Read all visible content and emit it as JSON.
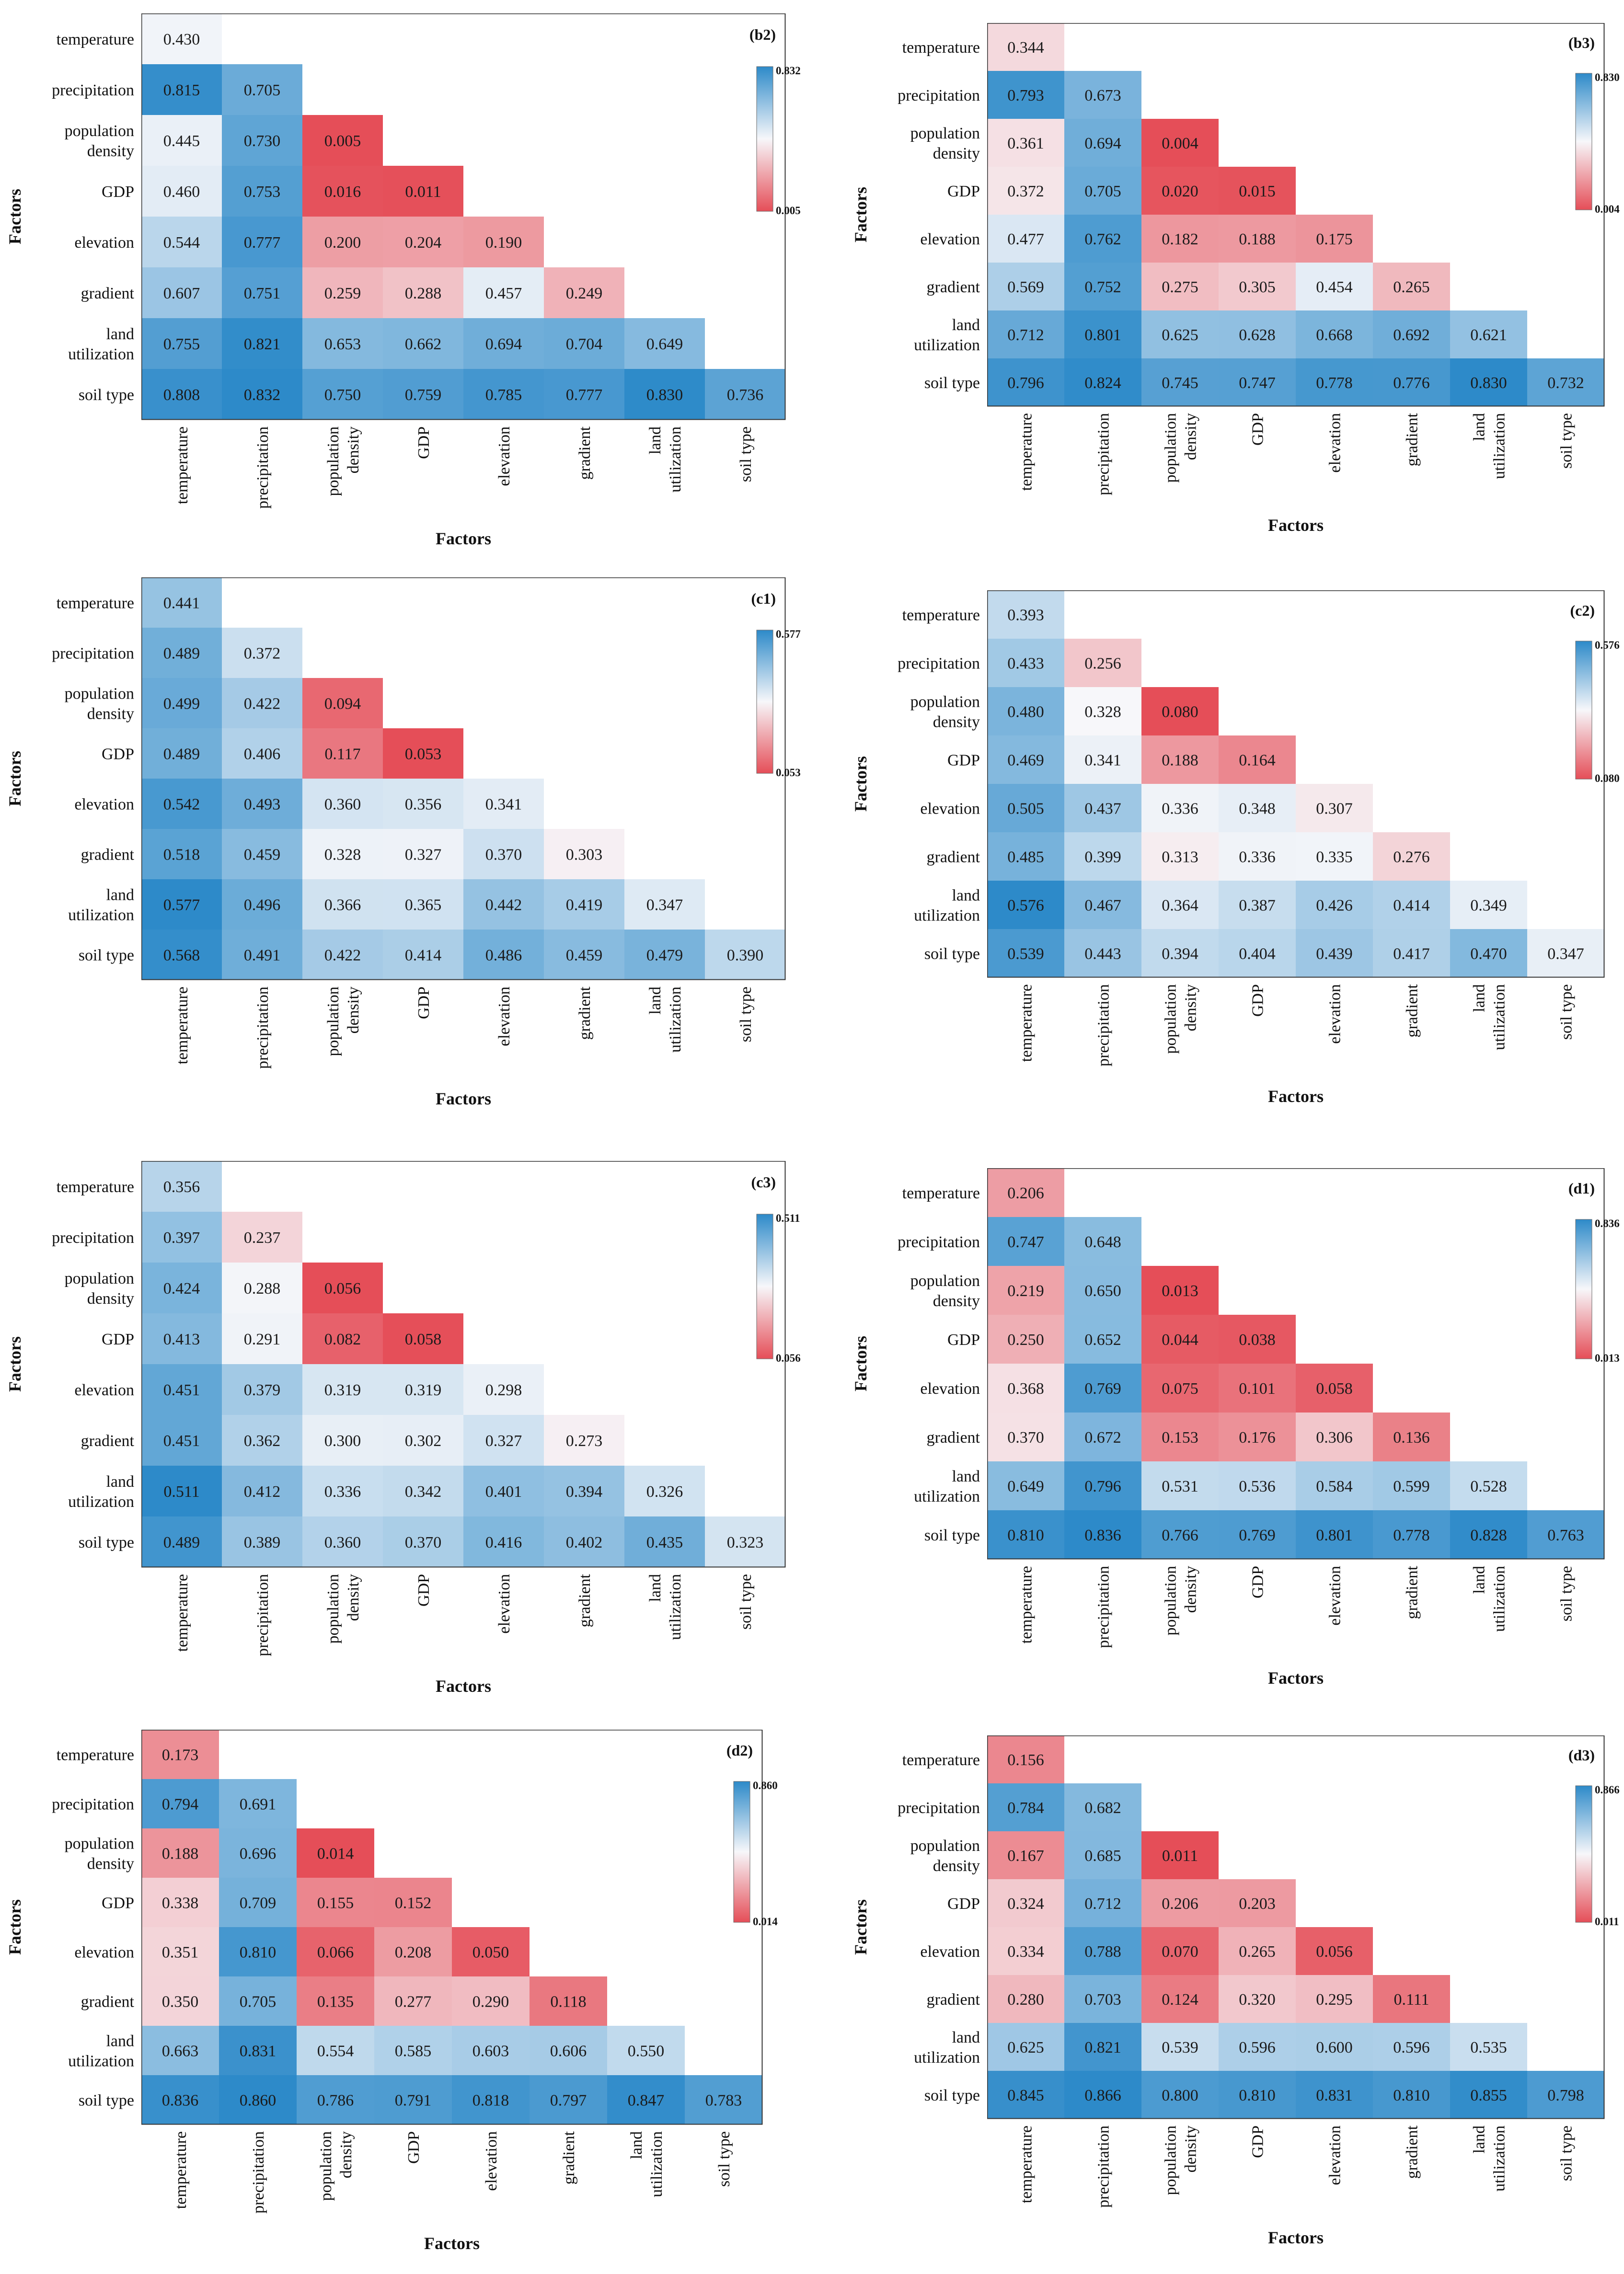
{
  "chart_data": [
    {
      "type": "heatmap",
      "title": "(b2)",
      "categories": [
        "temperature",
        "precipitation",
        "population density",
        "GDP",
        "elevation",
        "gradient",
        "land utilization",
        "soil type"
      ],
      "xlabel": "Factors",
      "ylabel": "Factors",
      "colorbar": {
        "max": "0.832",
        "min": "0.005"
      },
      "rows": [
        [
          "0.430"
        ],
        [
          "0.815",
          "0.705"
        ],
        [
          "0.445",
          "0.730",
          "0.005"
        ],
        [
          "0.460",
          "0.753",
          "0.016",
          "0.011"
        ],
        [
          "0.544",
          "0.777",
          "0.200",
          "0.204",
          "0.190"
        ],
        [
          "0.607",
          "0.751",
          "0.259",
          "0.288",
          "0.457",
          "0.249"
        ],
        [
          "0.755",
          "0.821",
          "0.653",
          "0.662",
          "0.694",
          "0.704",
          "0.649"
        ],
        [
          "0.808",
          "0.832",
          "0.750",
          "0.759",
          "0.785",
          "0.777",
          "0.830",
          "0.736"
        ]
      ]
    },
    {
      "type": "heatmap",
      "title": "(b3)",
      "categories": [
        "temperature",
        "precipitation",
        "population density",
        "GDP",
        "elevation",
        "gradient",
        "land utilization",
        "soil type"
      ],
      "xlabel": "Factors",
      "ylabel": "Factors",
      "colorbar": {
        "max": "0.830",
        "min": "0.004"
      },
      "rows": [
        [
          "0.344"
        ],
        [
          "0.793",
          "0.673"
        ],
        [
          "0.361",
          "0.694",
          "0.004"
        ],
        [
          "0.372",
          "0.705",
          "0.020",
          "0.015"
        ],
        [
          "0.477",
          "0.762",
          "0.182",
          "0.188",
          "0.175"
        ],
        [
          "0.569",
          "0.752",
          "0.275",
          "0.305",
          "0.454",
          "0.265"
        ],
        [
          "0.712",
          "0.801",
          "0.625",
          "0.628",
          "0.668",
          "0.692",
          "0.621"
        ],
        [
          "0.796",
          "0.824",
          "0.745",
          "0.747",
          "0.778",
          "0.776",
          "0.830",
          "0.732"
        ]
      ]
    },
    {
      "type": "heatmap",
      "title": "(c1)",
      "categories": [
        "temperature",
        "precipitation",
        "population density",
        "GDP",
        "elevation",
        "gradient",
        "land utilization",
        "soil type"
      ],
      "xlabel": "Factors",
      "ylabel": "Factors",
      "colorbar": {
        "max": "0.577",
        "min": "0.053"
      },
      "rows": [
        [
          "0.441"
        ],
        [
          "0.489",
          "0.372"
        ],
        [
          "0.499",
          "0.422",
          "0.094"
        ],
        [
          "0.489",
          "0.406",
          "0.117",
          "0.053"
        ],
        [
          "0.542",
          "0.493",
          "0.360",
          "0.356",
          "0.341"
        ],
        [
          "0.518",
          "0.459",
          "0.328",
          "0.327",
          "0.370",
          "0.303"
        ],
        [
          "0.577",
          "0.496",
          "0.366",
          "0.365",
          "0.442",
          "0.419",
          "0.347"
        ],
        [
          "0.568",
          "0.491",
          "0.422",
          "0.414",
          "0.486",
          "0.459",
          "0.479",
          "0.390"
        ]
      ]
    },
    {
      "type": "heatmap",
      "title": "(c2)",
      "categories": [
        "temperature",
        "precipitation",
        "population density",
        "GDP",
        "elevation",
        "gradient",
        "land utilization",
        "soil type"
      ],
      "xlabel": "Factors",
      "ylabel": "Factors",
      "colorbar": {
        "max": "0.576",
        "min": "0.080"
      },
      "rows": [
        [
          "0.393"
        ],
        [
          "0.433",
          "0.256"
        ],
        [
          "0.480",
          "0.328",
          "0.080"
        ],
        [
          "0.469",
          "0.341",
          "0.188",
          "0.164"
        ],
        [
          "0.505",
          "0.437",
          "0.336",
          "0.348",
          "0.307"
        ],
        [
          "0.485",
          "0.399",
          "0.313",
          "0.336",
          "0.335",
          "0.276"
        ],
        [
          "0.576",
          "0.467",
          "0.364",
          "0.387",
          "0.426",
          "0.414",
          "0.349"
        ],
        [
          "0.539",
          "0.443",
          "0.394",
          "0.404",
          "0.439",
          "0.417",
          "0.470",
          "0.347"
        ]
      ]
    },
    {
      "type": "heatmap",
      "title": "(c3)",
      "categories": [
        "temperature",
        "precipitation",
        "population density",
        "GDP",
        "elevation",
        "gradient",
        "land utilization",
        "soil type"
      ],
      "xlabel": "Factors",
      "ylabel": "Factors",
      "colorbar": {
        "max": "0.511",
        "min": "0.056"
      },
      "rows": [
        [
          "0.356"
        ],
        [
          "0.397",
          "0.237"
        ],
        [
          "0.424",
          "0.288",
          "0.056"
        ],
        [
          "0.413",
          "0.291",
          "0.082",
          "0.058"
        ],
        [
          "0.451",
          "0.379",
          "0.319",
          "0.319",
          "0.298"
        ],
        [
          "0.451",
          "0.362",
          "0.300",
          "0.302",
          "0.327",
          "0.273"
        ],
        [
          "0.511",
          "0.412",
          "0.336",
          "0.342",
          "0.401",
          "0.394",
          "0.326"
        ],
        [
          "0.489",
          "0.389",
          "0.360",
          "0.370",
          "0.416",
          "0.402",
          "0.435",
          "0.323"
        ]
      ]
    },
    {
      "type": "heatmap",
      "title": "(d1)",
      "categories": [
        "temperature",
        "precipitation",
        "population density",
        "GDP",
        "elevation",
        "gradient",
        "land utilization",
        "soil type"
      ],
      "xlabel": "Factors",
      "ylabel": "Factors",
      "colorbar": {
        "max": "0.836",
        "min": "0.013"
      },
      "rows": [
        [
          "0.206"
        ],
        [
          "0.747",
          "0.648"
        ],
        [
          "0.219",
          "0.650",
          "0.013"
        ],
        [
          "0.250",
          "0.652",
          "0.044",
          "0.038"
        ],
        [
          "0.368",
          "0.769",
          "0.075",
          "0.101",
          "0.058"
        ],
        [
          "0.370",
          "0.672",
          "0.153",
          "0.176",
          "0.306",
          "0.136"
        ],
        [
          "0.649",
          "0.796",
          "0.531",
          "0.536",
          "0.584",
          "0.599",
          "0.528"
        ],
        [
          "0.810",
          "0.836",
          "0.766",
          "0.769",
          "0.801",
          "0.778",
          "0.828",
          "0.763"
        ]
      ]
    },
    {
      "type": "heatmap",
      "title": "(d2)",
      "categories": [
        "temperature",
        "precipitation",
        "population density",
        "GDP",
        "elevation",
        "gradient",
        "land utilization",
        "soil type"
      ],
      "xlabel": "Factors",
      "ylabel": "Factors",
      "colorbar": {
        "max": "0.860",
        "min": "0.014"
      },
      "rows": [
        [
          "0.173"
        ],
        [
          "0.794",
          "0.691"
        ],
        [
          "0.188",
          "0.696",
          "0.014"
        ],
        [
          "0.338",
          "0.709",
          "0.155",
          "0.152"
        ],
        [
          "0.351",
          "0.810",
          "0.066",
          "0.208",
          "0.050"
        ],
        [
          "0.350",
          "0.705",
          "0.135",
          "0.277",
          "0.290",
          "0.118"
        ],
        [
          "0.663",
          "0.831",
          "0.554",
          "0.585",
          "0.603",
          "0.606",
          "0.550"
        ],
        [
          "0.836",
          "0.860",
          "0.786",
          "0.791",
          "0.818",
          "0.797",
          "0.847",
          "0.783"
        ]
      ]
    },
    {
      "type": "heatmap",
      "title": "(d3)",
      "categories": [
        "temperature",
        "precipitation",
        "population density",
        "GDP",
        "elevation",
        "gradient",
        "land utilization",
        "soil type"
      ],
      "xlabel": "Factors",
      "ylabel": "Factors",
      "colorbar": {
        "max": "0.866",
        "min": "0.011"
      },
      "rows": [
        [
          "0.156"
        ],
        [
          "0.784",
          "0.682"
        ],
        [
          "0.167",
          "0.685",
          "0.011"
        ],
        [
          "0.324",
          "0.712",
          "0.206",
          "0.203"
        ],
        [
          "0.334",
          "0.788",
          "0.070",
          "0.265",
          "0.056"
        ],
        [
          "0.280",
          "0.703",
          "0.124",
          "0.320",
          "0.295",
          "0.111"
        ],
        [
          "0.625",
          "0.821",
          "0.539",
          "0.596",
          "0.600",
          "0.596",
          "0.535"
        ],
        [
          "0.845",
          "0.866",
          "0.800",
          "0.810",
          "0.831",
          "0.810",
          "0.855",
          "0.798"
        ]
      ]
    }
  ]
}
